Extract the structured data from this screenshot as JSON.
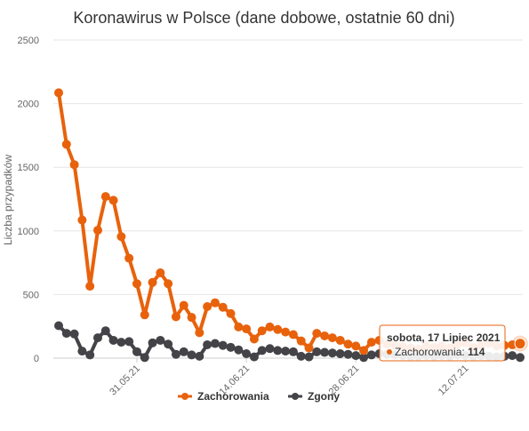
{
  "chart_data": {
    "type": "line",
    "title": "Koronawirus w Polsce (dane dobowe, ostatnie 60 dni)",
    "ylabel": "Liczba przypadków",
    "ylim": [
      0,
      2500
    ],
    "y_ticks": [
      0,
      500,
      1000,
      1500,
      2000,
      2500
    ],
    "x_tick_labels": [
      {
        "index": 10,
        "label": "31.05.21"
      },
      {
        "index": 24,
        "label": "14.06.21"
      },
      {
        "index": 38,
        "label": "28.06.21"
      },
      {
        "index": 52,
        "label": "12.07.21"
      }
    ],
    "grid": true,
    "legend_position": "bottom",
    "colors": {
      "Zachorowania": "#e8620c",
      "Zgony": "#434348"
    },
    "series": [
      {
        "name": "Zachorowania",
        "values": [
          2085,
          1680,
          1520,
          1085,
          565,
          1005,
          1270,
          1240,
          955,
          785,
          585,
          340,
          595,
          670,
          585,
          325,
          415,
          320,
          200,
          405,
          435,
          400,
          350,
          245,
          230,
          150,
          215,
          245,
          225,
          205,
          185,
          135,
          80,
          195,
          175,
          160,
          140,
          110,
          95,
          60,
          125,
          140,
          110,
          100,
          90,
          80,
          70,
          95,
          85,
          95,
          80,
          105,
          120,
          85,
          100,
          115,
          95,
          100,
          105,
          114
        ]
      },
      {
        "name": "Zgony",
        "values": [
          255,
          195,
          190,
          55,
          25,
          160,
          215,
          140,
          125,
          130,
          50,
          5,
          120,
          140,
          110,
          30,
          50,
          25,
          15,
          105,
          115,
          100,
          85,
          65,
          35,
          10,
          60,
          75,
          60,
          55,
          50,
          15,
          10,
          50,
          45,
          40,
          35,
          30,
          20,
          5,
          25,
          35,
          30,
          25,
          20,
          15,
          15,
          20,
          15,
          20,
          15,
          25,
          20,
          15,
          20,
          15,
          10,
          15,
          20,
          5
        ]
      }
    ],
    "tooltip": {
      "title": "sobota, 17 Lipiec 2021",
      "series_label": "Zachorowania",
      "value": 114,
      "index": 59
    }
  }
}
